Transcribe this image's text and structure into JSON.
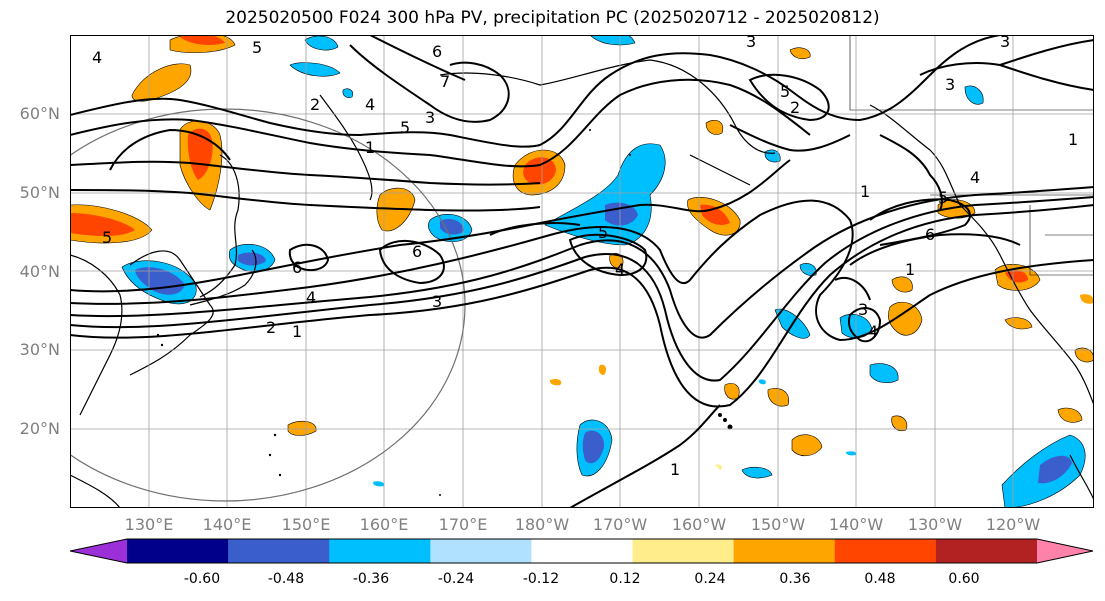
{
  "title": "2025020500 F024 300 hPa PV, precipitation PC (2025020712 - 2025020812)",
  "lat_labels": [
    "60°N",
    "50°N",
    "40°N",
    "30°N",
    "20°N"
  ],
  "lon_labels": [
    "130°E",
    "140°E",
    "150°E",
    "160°E",
    "170°E",
    "180°W",
    "170°W",
    "160°W",
    "150°W",
    "140°W",
    "130°W",
    "120°W"
  ],
  "contour_labels": [
    "4",
    "5",
    "6",
    "3",
    "3",
    "2",
    "4",
    "7",
    "5",
    "3",
    "5",
    "1",
    "2",
    "3",
    "1",
    "5",
    "6",
    "6",
    "4",
    "3",
    "2",
    "1",
    "5",
    "4",
    "3",
    "4",
    "1",
    "5",
    "4",
    "6",
    "1",
    "1"
  ],
  "colorbar": {
    "colors": [
      "#9b30d9",
      "#00008b",
      "#3a5fcd",
      "#00bfff",
      "#b0e2ff",
      "#ffffff",
      "#ffec8b",
      "#ffa500",
      "#ff4500",
      "#b22222",
      "#ff82ab"
    ],
    "tick_labels": [
      "-0.60",
      "-0.48",
      "-0.36",
      "-0.24",
      "-0.12",
      "0.12",
      "0.24",
      "0.36",
      "0.48",
      "0.60"
    ]
  }
}
